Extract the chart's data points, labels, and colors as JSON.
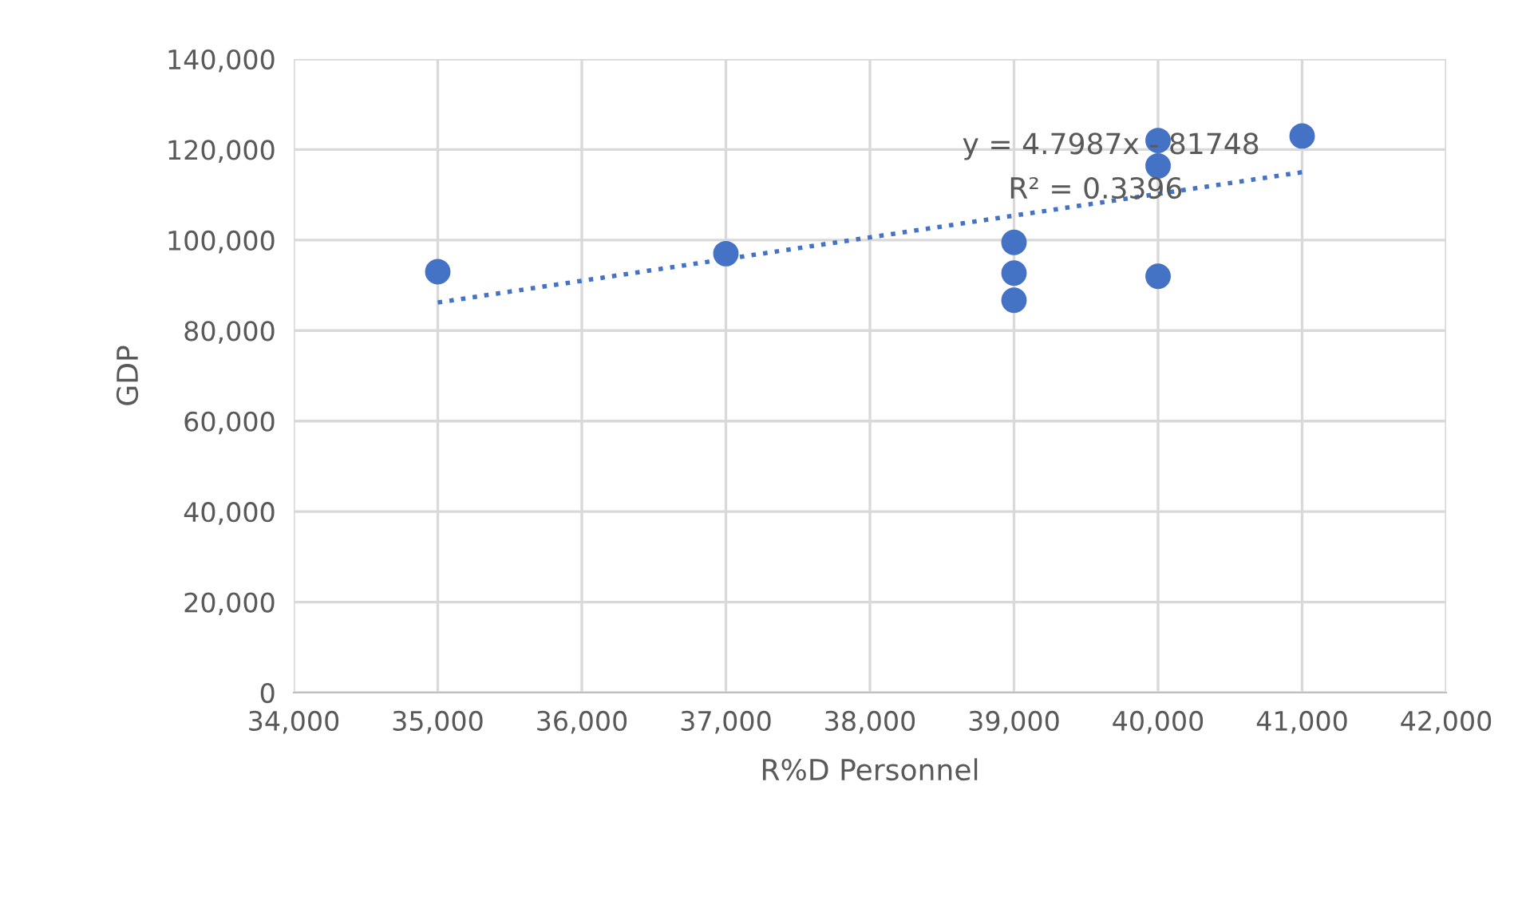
{
  "chart_data": {
    "type": "scatter",
    "xlabel": "R%D Personnel",
    "ylabel": "GDP",
    "xlim": [
      34000,
      42000
    ],
    "xticks": [
      {
        "value": 34000,
        "label": "34,000"
      },
      {
        "value": 35000,
        "label": "35,000"
      },
      {
        "value": 36000,
        "label": "36,000"
      },
      {
        "value": 37000,
        "label": "37,000"
      },
      {
        "value": 38000,
        "label": "38,000"
      },
      {
        "value": 39000,
        "label": "39,000"
      },
      {
        "value": 40000,
        "label": "40,000"
      },
      {
        "value": 41000,
        "label": "41,000"
      },
      {
        "value": 42000,
        "label": "42,000"
      }
    ],
    "ylim": [
      0,
      140000
    ],
    "yticks": [
      0,
      {
        "value": 20000,
        "label": "20,000"
      },
      {
        "value": 40000,
        "label": "40,000"
      },
      {
        "value": 60000,
        "label": "60,000"
      },
      {
        "value": 80000,
        "label": "80,000"
      },
      {
        "value": 100000,
        "label": "100,000"
      },
      {
        "value": 120000,
        "label": "120,000"
      },
      {
        "value": 140000,
        "label": "140,000"
      }
    ],
    "grid": true,
    "series": [
      {
        "color": "#4472c4",
        "marker": "circle",
        "x": [
          35000,
          37000,
          39000,
          39000,
          39000,
          40000,
          40000,
          40000,
          41000
        ],
        "values": [
          93000,
          97000,
          99500,
          92700,
          86700,
          122000,
          116400,
          92000,
          123000
        ]
      },
      {
        "type": "line",
        "color": "#4472c4",
        "line_style": "dotted",
        "x": [
          35000,
          41000
        ],
        "values": [
          86200,
          115000
        ]
      }
    ],
    "annotations": [
      "y = 4.7987x - 81748",
      "R² = 0.3396"
    ]
  }
}
